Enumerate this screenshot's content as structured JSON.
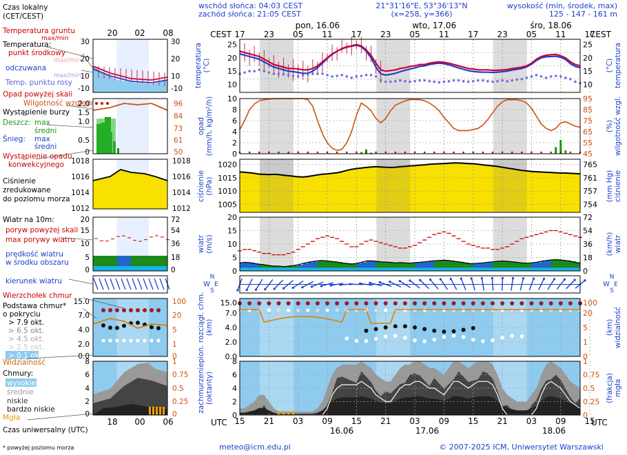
{
  "header": {
    "sunrise": "wschód słońca: 04:03 CEST",
    "sunset": "zachód słońca: 21:05 CEST",
    "coords": "21°31'16\"E, 53°36'13\"N",
    "grid": "(x=258,  y=366)",
    "elev_title": "wysokość (min, środek, max)",
    "elev_values": "125 - 147 - 161 m"
  },
  "time_axis": {
    "tz_label": "CEST",
    "utc_label": "UTC",
    "hours_cest": [
      "17",
      "23",
      "05",
      "11",
      "17",
      "23",
      "05",
      "11",
      "17",
      "23",
      "05",
      "11",
      "17"
    ],
    "hours_utc": [
      "15",
      "21",
      "03",
      "09",
      "15",
      "21",
      "03",
      "09",
      "15",
      "21",
      "03",
      "09",
      "15"
    ],
    "days_top": [
      "pon, 16.06",
      "wto, 17.06",
      "śro, 18.06"
    ],
    "days_bottom": [
      "16.06",
      "17.06",
      "18.06"
    ]
  },
  "legend": {
    "local_time": "Czas lokalny",
    "local_time_sub": "(CET/CEST)",
    "ground_temp": "Temperatura gruntu",
    "ground_temp_sub": "max/min",
    "temperature": "Temperatura:",
    "midpoint": "punkt środkowy",
    "maxmin1": "max/min",
    "feels_like": "odczuwana",
    "maxmin2": "max/min",
    "dew_point": "Temp. punktu rosy",
    "precip_above": "Opad powyżej skali",
    "rel_humidity": "Wilgotność względna",
    "storm": "Wystąpienie burzy",
    "rain": "Deszcz:",
    "rain_max": "max",
    "rain_mean": "średni",
    "snow": "Śnieg:",
    "snow_max": "max",
    "snow_mean": "średni",
    "conv_precip": "Wystąpienie opadu",
    "conv_precip2": "konwekcyjnego",
    "pressure1": "Ciśnienie",
    "pressure2": "zredukowane",
    "pressure3": "do poziomu morza",
    "wind_title": "Wiatr na 10m:",
    "gusts_above": "poryw powyżej skali",
    "max_gusts": "max porywy wiatru",
    "wind_speed": "prędkość wiatru",
    "wind_speed2": "w środku obszaru",
    "wind_dir": "kierunek wiatru",
    "cloud_top": "Wierzchołek chmur",
    "cloud_base": "Podstawa chmur*",
    "cloud_base2": "o pokryciu",
    "okt79": "> 7.9 okt.",
    "okt65": "> 6.5 okt.",
    "okt45": "> 4.5 okt.",
    "okt25": "> 2.5 okt.",
    "okt01": "> 0.1 okt.",
    "visibility": "Widzialność",
    "clouds": "Chmury:",
    "high": "wysokie",
    "mid": "średnie",
    "low": "niskie",
    "very_low": "bardzo niskie",
    "fog": "Mgła",
    "utc_time": "Czas uniwersalny (UTC)",
    "footnote": "* powyżej poziomu morza"
  },
  "mini_axis": {
    "top_hours": [
      "20",
      "02",
      "08"
    ],
    "bottom_hours": [
      "18",
      "00",
      "06"
    ]
  },
  "panel_labels": {
    "temp_left": "temperatura",
    "temp_left_unit": "(°C)",
    "temp_right": "temperatura",
    "temp_right_unit": "(°C)",
    "precip_left": "opad",
    "precip_left_unit": "(mm/h, kg/m²/h)",
    "precip_right": "wilgotność wzgl.",
    "precip_right_unit": "(%)",
    "press_left": "ciśnienie",
    "press_left_unit": "(hPa)",
    "press_right": "ciśnienie",
    "press_right_unit": "(mm Hg)",
    "wind_left": "wiatr",
    "wind_left_unit": "(m/s)",
    "wind_right": "wiatr",
    "wind_right_unit": "(km/h)",
    "cloud_left1": "pion. rozciągł. chm.",
    "cloud_left2": "(km)",
    "cloud_right1": "widzialność",
    "cloud_right2": "(km)",
    "cov_left1": "zachmurzenie",
    "cov_left2": "(oktanty)",
    "cov_right1": "mgła",
    "cov_right2": "(frakcja)"
  },
  "compass": {
    "n": "N",
    "w": "W",
    "s": "S",
    "e": "E"
  },
  "footer": {
    "email": "meteo@icm.edu.pl",
    "copyright": "© 2007-2025 ICM, Uniwersytet Warszawski"
  },
  "colors": {
    "temperature": "#cc0033",
    "feels_like": "#1a3fcc",
    "dew_point": "#7070e0",
    "humidity": "#d05010",
    "rain": "#119911",
    "pressure_fill": "#f8e000",
    "wind_green": "#1a8a1a",
    "wind_blue": "#2266cc",
    "cloud_bg": "#8ecbee",
    "night_band": "#dcdcdc"
  },
  "chart_data": {
    "type": "line",
    "x_hours_cest_start": "17:00 (pon, 16.06)",
    "axes": {
      "temperature": {
        "ylim": [
          7,
          27
        ],
        "ticks": [
          "25",
          "20",
          "15",
          "10"
        ],
        "unit": "°C"
      },
      "precip": {
        "ylim": [
          0,
          10
        ],
        "ticks": [
          "10",
          "8",
          "6",
          "4",
          "2",
          "0"
        ],
        "unit": "mm/h"
      },
      "humidity": {
        "ylim": [
          45,
          95
        ],
        "ticks": [
          "95",
          "85",
          "75",
          "65",
          "55",
          "45"
        ],
        "unit": "%"
      },
      "pressure": {
        "ylim": [
          1002,
          1022
        ],
        "ticks": [
          "1020",
          "1015",
          "1010",
          "1005"
        ],
        "ticks_mmhg": [
          "765",
          "761",
          "757",
          "754"
        ],
        "unit": "hPa"
      },
      "wind": {
        "ylim": [
          0,
          20
        ],
        "ticks": [
          "20",
          "15",
          "10",
          "5",
          "0"
        ],
        "ticks_kmh": [
          "72",
          "54",
          "36",
          "18",
          "0"
        ],
        "unit": "m/s"
      },
      "cloud_extent": {
        "ticks": [
          "15.0",
          "7.0",
          "4.0",
          "2.0",
          "0.0"
        ],
        "vis_ticks": [
          "100",
          "20",
          "5",
          "1",
          "0"
        ],
        "unit": "km"
      },
      "cloud_cover": {
        "ylim": [
          0,
          8
        ],
        "ticks": [
          "8",
          "6",
          "4",
          "2",
          "0"
        ],
        "fog_ticks": [
          "1",
          "0.75",
          "0.5",
          "0.25",
          "0"
        ],
        "unit": "oktanty"
      }
    },
    "temperature": [
      22.5,
      22,
      21.5,
      21,
      20.5,
      19.5,
      18.5,
      17.5,
      17,
      16.5,
      16,
      16,
      15.8,
      15.5,
      15.5,
      16,
      17,
      18.5,
      20,
      21.5,
      22.5,
      23.5,
      24.2,
      24.5,
      25,
      24.5,
      23,
      21,
      18,
      15.5,
      15,
      15.2,
      15.5,
      16,
      16.3,
      16.8,
      17,
      17.5,
      17.5,
      18,
      18.3,
      18.5,
      18.3,
      18,
      17.5,
      17,
      16.5,
      16,
      15.8,
      15.5,
      15.5,
      15.5,
      15.3,
      15.3,
      15.5,
      15.6,
      16,
      16.2,
      16.5,
      17,
      18,
      19.5,
      20.5,
      21,
      21.2,
      21.3,
      20.8,
      20,
      18.5,
      17.5,
      17
    ],
    "feels_like": [
      21.5,
      21,
      20.5,
      20,
      19.5,
      18.5,
      17.5,
      16.5,
      16,
      15.5,
      15,
      14.8,
      14.5,
      14.2,
      14.2,
      15,
      16.3,
      18,
      19.8,
      21.3,
      22.5,
      23.4,
      24,
      24.4,
      24.8,
      24.2,
      22.5,
      20,
      16.5,
      14,
      13.5,
      13.8,
      14.2,
      14.8,
      15.3,
      15.8,
      16.2,
      16.8,
      17,
      17.5,
      17.8,
      18,
      17.8,
      17.4,
      16.8,
      16.2,
      15.7,
      15.2,
      14.9,
      14.7,
      14.6,
      14.6,
      14.5,
      14.6,
      14.8,
      15,
      15.4,
      15.7,
      16,
      16.6,
      17.6,
      19,
      20,
      20.4,
      20.5,
      20.6,
      20.2,
      19.4,
      17.8,
      16.8,
      16.3
    ],
    "dew_point": [
      14,
      14.5,
      15,
      15,
      15.5,
      15,
      14.5,
      14,
      14,
      13.8,
      13.5,
      13.2,
      13,
      13.5,
      13.8,
      14,
      14,
      14,
      13.5,
      13,
      13.2,
      13.5,
      13,
      12.5,
      13,
      13.2,
      13.5,
      13.5,
      13,
      11.5,
      11,
      11,
      11.2,
      11.5,
      11.2,
      11,
      11.2,
      11.5,
      11.5,
      11.2,
      11,
      10.8,
      11,
      11.2,
      11.5,
      11.5,
      11.2,
      11,
      11.2,
      11.5,
      11.5,
      11.2,
      11,
      11.2,
      11.5,
      11.2,
      11.5,
      11.8,
      12,
      12.5,
      13,
      13.5,
      13,
      12.5,
      13,
      13.2,
      13,
      12.5,
      12,
      11,
      10.5
    ],
    "rel_humidity": [
      67,
      75,
      85,
      90,
      93,
      94,
      94.5,
      95,
      95,
      95,
      95,
      95,
      95,
      95,
      94,
      88,
      75,
      63,
      55,
      50,
      48,
      49,
      55,
      65,
      80,
      91,
      88,
      84,
      77,
      73,
      77,
      84,
      89,
      91,
      93,
      94,
      94,
      94,
      93,
      91,
      88,
      84,
      78,
      73,
      68,
      66,
      66,
      66,
      67,
      68,
      71,
      76,
      82,
      88,
      92,
      94,
      94,
      94,
      93,
      91,
      86,
      79,
      72,
      68,
      66,
      68,
      73,
      74,
      72,
      70,
      69
    ],
    "pressure": [
      1017.2,
      1017.1,
      1016.9,
      1016.7,
      1016.4,
      1016.3,
      1016.2,
      1016.3,
      1016.2,
      1016.0,
      1015.8,
      1015.6,
      1015.4,
      1015.3,
      1015.5,
      1015.8,
      1016.1,
      1016.4,
      1016.5,
      1016.7,
      1016.9,
      1017.3,
      1017.8,
      1018.2,
      1018.5,
      1018.7,
      1018.9,
      1019.1,
      1019.2,
      1019.1,
      1019.0,
      1018.9,
      1019.0,
      1019.2,
      1019.3,
      1019.5,
      1019.6,
      1019.8,
      1019.9,
      1020.1,
      1020.2,
      1020.3,
      1020.4,
      1020.5,
      1020.6,
      1020.6,
      1020.5,
      1020.4,
      1020.3,
      1020.1,
      1019.9,
      1019.7,
      1019.5,
      1019.3,
      1019.0,
      1018.7,
      1018.4,
      1018.1,
      1017.8,
      1017.6,
      1017.4,
      1017.3,
      1017.2,
      1017.1,
      1017.0,
      1016.9,
      1016.8,
      1016.8,
      1016.7,
      1016.6,
      1016.5
    ],
    "wind_speed": [
      3.0,
      3.2,
      3.1,
      2.8,
      2.5,
      2.3,
      2.0,
      1.8,
      1.8,
      1.6,
      1.8,
      2.0,
      2.3,
      2.8,
      3.2,
      3.5,
      3.8,
      3.9,
      3.7,
      3.5,
      3.3,
      3.0,
      2.8,
      2.6,
      2.8,
      3.2,
      3.7,
      3.8,
      3.6,
      3.4,
      3.3,
      3.2,
      3.0,
      3.1,
      3.0,
      2.9,
      3.1,
      3.2,
      3.4,
      3.6,
      3.8,
      3.9,
      4.0,
      3.9,
      3.6,
      3.4,
      3.1,
      2.8,
      2.7,
      2.9,
      3.0,
      3.2,
      3.4,
      3.6,
      3.7,
      3.6,
      3.4,
      3.2,
      3.0,
      2.9,
      3.0,
      3.2,
      3.6,
      3.9,
      4.1,
      4.2,
      4.1,
      3.9,
      3.6,
      3.2,
      2.9
    ],
    "wind_gusts": [
      7.5,
      8.0,
      8.0,
      7.5,
      7.0,
      6.5,
      6.5,
      6.0,
      6.0,
      6.0,
      6.5,
      7.0,
      8.0,
      9.0,
      10.0,
      11.0,
      12.0,
      12.5,
      13.0,
      12.5,
      12.0,
      11.0,
      10.0,
      9.0,
      9.0,
      10.0,
      11.0,
      11.5,
      11.0,
      10.5,
      10.0,
      9.5,
      9.0,
      8.5,
      8.5,
      9.0,
      9.5,
      10.5,
      11.5,
      12.5,
      13.5,
      14.0,
      14.5,
      14.0,
      13.0,
      12.0,
      11.0,
      10.0,
      9.5,
      9.0,
      8.5,
      8.5,
      8.0,
      8.0,
      8.5,
      9.0,
      10.0,
      11.0,
      12.0,
      12.5,
      13.0,
      13.5,
      14.0,
      14.5,
      15.0,
      15.0,
      14.5,
      14.0,
      13.5,
      13.0,
      12.5
    ],
    "rain_mean": [
      0,
      0,
      0,
      0,
      0,
      0,
      0,
      0,
      0,
      0,
      0,
      0,
      0,
      0,
      0,
      0,
      0,
      0,
      0,
      0,
      0,
      0,
      0,
      0,
      0,
      0.3,
      0.8,
      0.2,
      0,
      0,
      0,
      0,
      0,
      0,
      0,
      0,
      0,
      0,
      0,
      0,
      0,
      0,
      0,
      0,
      0,
      0,
      0,
      0,
      0,
      0,
      0,
      0,
      0,
      0,
      0,
      0,
      0,
      0,
      0,
      0,
      0,
      0,
      0,
      0,
      0,
      1.2,
      2.5,
      0.6,
      0,
      0,
      0
    ],
    "cloud_cover_total": [
      1,
      1,
      1.5,
      2,
      3,
      3,
      2,
      1,
      0.5,
      0.5,
      0.5,
      0.5,
      0.5,
      0.5,
      0.5,
      0.5,
      1,
      2,
      4,
      6,
      7,
      7.5,
      7.5,
      7.5,
      7.5,
      8,
      7.5,
      7,
      6,
      5.5,
      5,
      5,
      6,
      7,
      7.5,
      7.5,
      8,
      8,
      7.5,
      7,
      7,
      6.5,
      6,
      7,
      8,
      8,
      7.5,
      7,
      7.5,
      8,
      8,
      8,
      7.5,
      6,
      4,
      3,
      2.5,
      2,
      2,
      2,
      3,
      4,
      6,
      7.5,
      8,
      7.5,
      7,
      6,
      5,
      4.5,
      4
    ]
  }
}
